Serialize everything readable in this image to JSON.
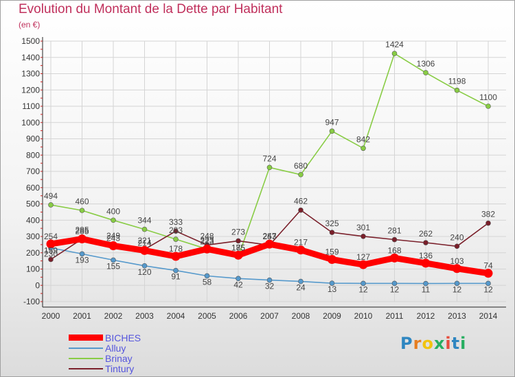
{
  "header": {
    "title": "Evolution du Montant de la Dette par Habitant",
    "subtitle": "(en €)"
  },
  "chart_data": {
    "type": "line",
    "title": "Evolution du Montant de la Dette par Habitant",
    "subtitle": "(en €)",
    "xlabel": "",
    "ylabel": "",
    "x": [
      "2000",
      "2001",
      "2002",
      "2003",
      "2004",
      "2005",
      "2006",
      "2007",
      "2008",
      "2009",
      "2010",
      "2011",
      "2012",
      "2013",
      "2014"
    ],
    "ylim": [
      -100,
      1500
    ],
    "yticks": [
      -100,
      0,
      100,
      200,
      300,
      400,
      500,
      600,
      700,
      800,
      900,
      1000,
      1100,
      1200,
      1300,
      1400,
      1500
    ],
    "grid": true,
    "legend_position": "bottom-left",
    "series": [
      {
        "name": "BICHES",
        "color": "#ff0000",
        "values": [
          254,
          285,
          243,
          214,
          178,
          223,
          185,
          253,
          217,
          159,
          127,
          168,
          136,
          103,
          74
        ]
      },
      {
        "name": "Alluy",
        "color": "#5599cc",
        "values": [
          230,
          193,
          155,
          120,
          91,
          58,
          42,
          32,
          24,
          13,
          12,
          12,
          11,
          12,
          12
        ]
      },
      {
        "name": "Brinay",
        "color": "#88cc44",
        "values": [
          494,
          460,
          400,
          344,
          283,
          223,
          175,
          724,
          680,
          947,
          842,
          1424,
          1306,
          1198,
          1100
        ]
      },
      {
        "name": "Tintury",
        "color": "#7a1f2a",
        "values": [
          159,
          285,
          249,
          221,
          333,
          248,
          273,
          247,
          462,
          325,
          301,
          281,
          262,
          240,
          382
        ]
      }
    ]
  },
  "legend": {
    "items": [
      {
        "label": "BICHES",
        "color": "#ff0000"
      },
      {
        "label": "Alluy",
        "color": "#5599cc"
      },
      {
        "label": "Brinay",
        "color": "#88cc44"
      },
      {
        "label": "Tintury",
        "color": "#7a1f2a"
      }
    ]
  },
  "logo": {
    "letters": [
      "P",
      "r",
      "o",
      "x",
      "i",
      "t",
      "i"
    ],
    "colors": [
      "#2e86c1",
      "#e67e22",
      "#f1c40f",
      "#27ae60",
      "#e74c3c",
      "#2e86c1",
      "#27ae60"
    ]
  }
}
